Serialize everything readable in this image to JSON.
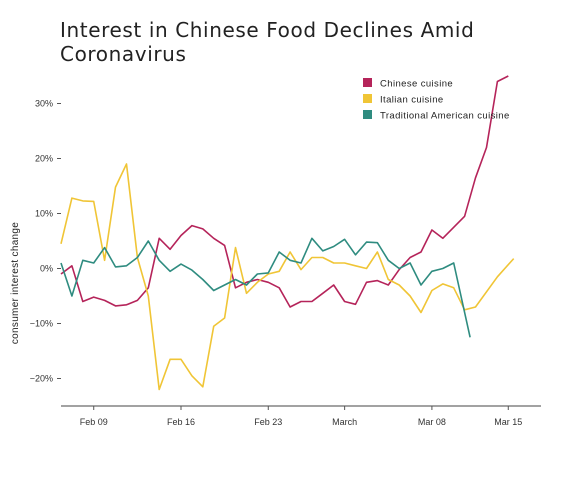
{
  "chart_data": {
    "type": "line",
    "title": "Interest in Chinese Food Declines Amid Coronavirus",
    "ylabel": "consumer interest change",
    "ylim": [
      -25,
      37
    ],
    "yticks": [
      -20,
      -10,
      0,
      10,
      20,
      30
    ],
    "ytick_labels": [
      "−20%",
      "−10%",
      "0%",
      "10%",
      "20%",
      "30%"
    ],
    "xlim": [
      0,
      44
    ],
    "xticks": [
      {
        "x": 3,
        "label": "Feb 09"
      },
      {
        "x": 11,
        "label": "Feb 16"
      },
      {
        "x": 19,
        "label": "Feb 23"
      },
      {
        "x": 26,
        "label": "March"
      },
      {
        "x": 34,
        "label": "Mar 08"
      },
      {
        "x": 41,
        "label": "Mar 15"
      }
    ],
    "legend_position": "top-right",
    "series": [
      {
        "name": "Chinese cuisine",
        "color": "#b5245a",
        "values": [
          -1,
          0.5,
          -6,
          -5.2,
          -5.8,
          -6.8,
          -6.6,
          -5.8,
          -3.5,
          5.5,
          3.5,
          6,
          7.8,
          7.2,
          5.5,
          4.2,
          -3.5,
          -2.5,
          -2,
          -2.5,
          -3.5,
          -7,
          -6,
          -6,
          -4.5,
          -3,
          -6,
          -6.5,
          -2.5,
          -2.2,
          -3,
          -0.2,
          2,
          3,
          7,
          5.5,
          7.5,
          9.5,
          16.5,
          22,
          34,
          35
        ],
        "x": [
          0,
          1,
          2,
          3,
          4,
          5,
          6,
          7,
          8,
          9,
          10,
          11,
          12,
          13,
          14,
          15,
          16,
          17,
          18,
          19,
          20,
          21,
          22,
          23,
          24,
          25,
          26,
          27,
          28,
          29,
          30,
          31,
          32,
          33,
          34,
          35,
          36,
          37,
          38,
          39,
          40,
          41
        ]
      },
      {
        "name": "Italian cuisine",
        "color": "#f0c536",
        "values": [
          4.5,
          12.8,
          12.3,
          12.2,
          1.5,
          14.8,
          19,
          2,
          -5,
          -22,
          -16.5,
          -16.5,
          -19.5,
          -21.5,
          -10.5,
          -9,
          3.8,
          -4.5,
          -2.5,
          -1,
          -0.5,
          3,
          -0.2,
          2,
          2,
          1,
          1,
          0.5,
          0,
          3,
          -2,
          -3,
          -5,
          -8,
          -4,
          -2.8,
          -3.5,
          -7.5,
          -7,
          -1.5,
          1.8
        ],
        "x": [
          0,
          1,
          2,
          3,
          4,
          5,
          6,
          7,
          8,
          9,
          10,
          11,
          12,
          13,
          14,
          15,
          16,
          17,
          18,
          19,
          20,
          21,
          22,
          23,
          24,
          25,
          26,
          27,
          28,
          29,
          30,
          31,
          32,
          33,
          34,
          35,
          36,
          37,
          38,
          40,
          41.5
        ]
      },
      {
        "name": "Traditional American cuisine",
        "color": "#2f8c80",
        "values": [
          1,
          -5,
          1.5,
          1,
          3.8,
          0.3,
          0.5,
          2,
          5,
          1.5,
          -0.5,
          0.8,
          -0.3,
          -2,
          -4,
          -3,
          -2,
          -3,
          -1,
          -0.8,
          3,
          1.5,
          1,
          5.5,
          3.2,
          4,
          5.3,
          2.5,
          4.8,
          4.7,
          1.5,
          0,
          1,
          -3,
          -0.5,
          0,
          1,
          -12.5
        ],
        "x": [
          0,
          1,
          2,
          3,
          4,
          5,
          6,
          7,
          8,
          9,
          10,
          11,
          12,
          13,
          14,
          15,
          16,
          17,
          18,
          19,
          20,
          21,
          22,
          23,
          24,
          25,
          26,
          27,
          28,
          29,
          30,
          31,
          32,
          33,
          34,
          35,
          36,
          37.5
        ]
      }
    ]
  }
}
